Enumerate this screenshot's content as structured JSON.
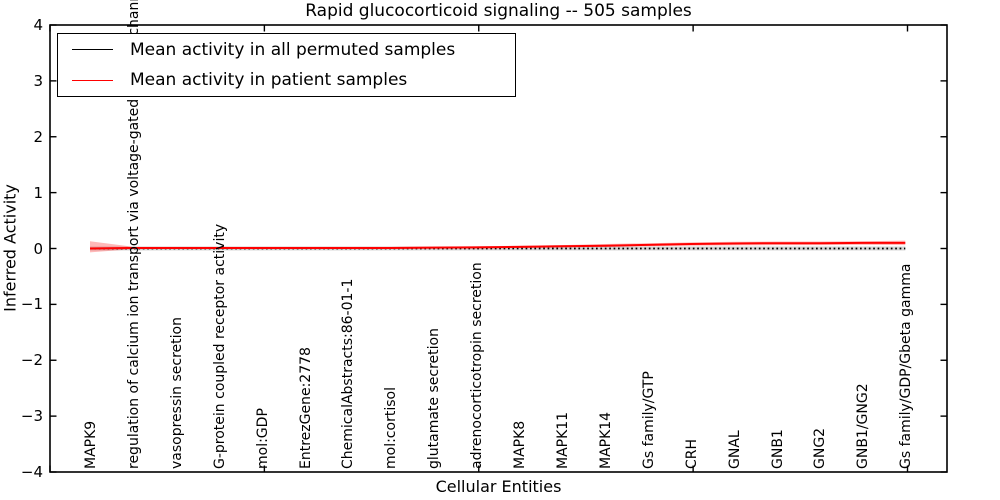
{
  "title": "Rapid glucocorticoid signaling -- 505 samples",
  "axes": {
    "x_label": "Cellular Entities",
    "y_label": "Inferred Activity"
  },
  "legend": {
    "position": "upper left",
    "entries": [
      {
        "label": "Mean activity in all permuted samples",
        "color": "#000000",
        "style": "solid"
      },
      {
        "label": "Mean activity in patient samples",
        "color": "#ff0000",
        "style": "solid"
      }
    ]
  },
  "colors": {
    "frame": "#000000",
    "patient_line": "#ff0000",
    "permuted_line": "#000000",
    "patient_band": "rgba(255,0,0,0.28)",
    "permuted_band": "rgba(128,128,128,0.35)"
  },
  "chart_data": {
    "type": "line",
    "title": "Rapid glucocorticoid signaling -- 505 samples",
    "xlabel": "Cellular Entities",
    "ylabel": "Inferred Activity",
    "ylim": [
      -4,
      4
    ],
    "yticks": [
      4,
      3,
      2,
      1,
      0,
      -1,
      -2,
      -3,
      -4
    ],
    "ytick_labels": [
      "4",
      "3",
      "2",
      "1",
      "0",
      "−1",
      "−2",
      "−3",
      "−4"
    ],
    "x_major_ticks": [
      0,
      5,
      10,
      15,
      20
    ],
    "grid": false,
    "legend_position": "upper left",
    "categories": [
      "MAPK9",
      "regulation of calcium ion transport via voltage-gated calcium channels",
      "vasopressin secretion",
      "G-protein coupled receptor activity",
      "mol:GDP",
      "EntrezGene:2778",
      "ChemicalAbstracts:86-01-1",
      "mol:cortisol",
      "glutamate secretion",
      "adrenocorticotropin secretion",
      "MAPK8",
      "MAPK11",
      "MAPK14",
      "Gs family/GTP",
      "CRH",
      "GNAL",
      "GNB1",
      "GNG2",
      "GNB1/GNG2",
      "Gs family/GDP/Gbeta gamma"
    ],
    "series": [
      {
        "name": "Mean activity in all permuted samples",
        "color": "#000000",
        "line_style": "dotted",
        "values": [
          0,
          0,
          0,
          0,
          0,
          0,
          0,
          0,
          0,
          0,
          0,
          0,
          0,
          0,
          0,
          0,
          0,
          0,
          0,
          0
        ]
      },
      {
        "name": "Mean activity in patient samples",
        "color": "#ff0000",
        "line_style": "solid",
        "values": [
          0.0,
          0.01,
          0.01,
          0.01,
          0.01,
          0.01,
          0.01,
          0.01,
          0.015,
          0.02,
          0.03,
          0.04,
          0.05,
          0.065,
          0.08,
          0.09,
          0.095,
          0.095,
          0.1,
          0.1
        ]
      }
    ],
    "patient_band": {
      "upper": [
        0.13,
        0.03,
        0.03,
        0.03,
        0.03,
        0.03,
        0.03,
        0.03,
        0.035,
        0.04,
        0.05,
        0.06,
        0.08,
        0.095,
        0.11,
        0.12,
        0.125,
        0.125,
        0.13,
        0.14
      ],
      "lower": [
        -0.07,
        -0.01,
        -0.005,
        -0.005,
        -0.005,
        -0.005,
        -0.005,
        -0.005,
        0.0,
        0.0,
        0.01,
        0.02,
        0.03,
        0.04,
        0.05,
        0.055,
        0.06,
        0.06,
        0.065,
        0.06
      ]
    },
    "permuted_band": {
      "half_width": 0.035
    }
  }
}
